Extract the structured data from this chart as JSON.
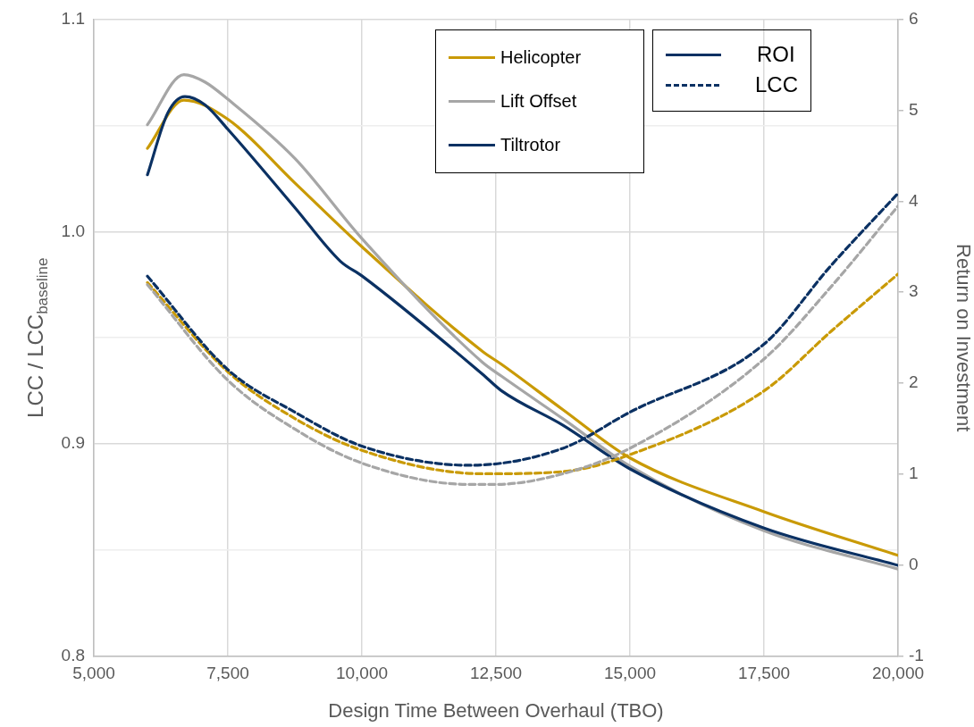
{
  "chart_data": {
    "type": "line",
    "xlabel": "Design Time Between Overhaul (TBO)",
    "ylabel": "LCC / LCC$_{baseline}$",
    "y2label": "Return on Investment",
    "xlim": [
      5000,
      20000
    ],
    "xticks": [
      {
        "value": 5000,
        "label": "5,000"
      },
      {
        "value": 7500,
        "label": "7,500"
      },
      {
        "value": 10000,
        "label": "10,000"
      },
      {
        "value": 12500,
        "label": "12,500"
      },
      {
        "value": 15000,
        "label": "15,000"
      },
      {
        "value": 17500,
        "label": "17,500"
      },
      {
        "value": 20000,
        "label": "20,000"
      }
    ],
    "ylim": [
      0.8,
      1.1
    ],
    "yticks": [
      {
        "value": 0.8,
        "label": "0.8"
      },
      {
        "value": 0.85,
        "label": null
      },
      {
        "value": 0.9,
        "label": "0.9"
      },
      {
        "value": 0.95,
        "label": null
      },
      {
        "value": 1.0,
        "label": "1.0"
      },
      {
        "value": 1.05,
        "label": null
      },
      {
        "value": 1.1,
        "label": "1.1"
      }
    ],
    "y2lim": [
      -1,
      6
    ],
    "y2ticks": [
      -1,
      0,
      1,
      2,
      3,
      4,
      5,
      6
    ],
    "grid": true,
    "legend": "top right",
    "marker": "none",
    "annotations": [
      "ROI",
      "LCC"
    ],
    "series": [
      {
        "name": "Helicopter",
        "color": "#c99a06",
        "axis": "y2",
        "line_style": "solid",
        "x": [
          6000,
          6680,
          7500,
          8750,
          10000,
          12250,
          12600,
          13750,
          15000,
          17500,
          20000
        ],
        "values": [
          4.58,
          5.11,
          4.9,
          4.2,
          3.5,
          2.35,
          2.21,
          1.71,
          1.18,
          0.59,
          0.11
        ]
      },
      {
        "name": "Lift Offset",
        "color": "#a6a6a6",
        "axis": "y2",
        "line_style": "solid",
        "x": [
          6000,
          6680,
          7070,
          7500,
          8750,
          10000,
          12250,
          12600,
          13750,
          15000,
          17500,
          20000
        ],
        "values": [
          4.84,
          5.39,
          5.31,
          5.12,
          4.47,
          3.59,
          2.23,
          2.08,
          1.61,
          1.09,
          0.38,
          -0.04
        ]
      },
      {
        "name": "Tiltrotor",
        "color": "#0b3163",
        "axis": "y2",
        "line_style": "solid",
        "x": [
          6000,
          6380,
          6700,
          7070,
          7500,
          8750,
          9600,
          10000,
          12250,
          12600,
          13750,
          15000,
          17500,
          20000
        ],
        "values": [
          4.29,
          4.97,
          5.15,
          5.06,
          4.79,
          3.93,
          3.34,
          3.18,
          2.1,
          1.92,
          1.54,
          1.06,
          0.41,
          0.0
        ]
      },
      {
        "color": "#c99a06",
        "axis": "y",
        "line_style": "dashed",
        "x": [
          6000,
          7500,
          8750,
          10000,
          12250,
          13750,
          15000,
          17500,
          18750,
          20000
        ],
        "values": [
          0.976,
          0.934,
          0.912,
          0.897,
          0.886,
          0.887,
          0.895,
          0.925,
          0.953,
          0.98
        ]
      },
      {
        "color": "#a6a6a6",
        "axis": "y",
        "line_style": "dashed",
        "x": [
          6000,
          7500,
          8750,
          10000,
          12000,
          12500,
          13750,
          15000,
          17500,
          18750,
          20000
        ],
        "values": [
          0.975,
          0.93,
          0.907,
          0.891,
          0.881,
          0.881,
          0.886,
          0.898,
          0.94,
          0.974,
          1.012
        ]
      },
      {
        "color": "#0b3163",
        "axis": "y",
        "line_style": "dashed",
        "x": [
          6000,
          7500,
          8750,
          10000,
          12000,
          13750,
          15000,
          17500,
          18750,
          20000
        ],
        "values": [
          0.979,
          0.935,
          0.915,
          0.899,
          0.89,
          0.898,
          0.915,
          0.947,
          0.984,
          1.018
        ]
      }
    ]
  }
}
